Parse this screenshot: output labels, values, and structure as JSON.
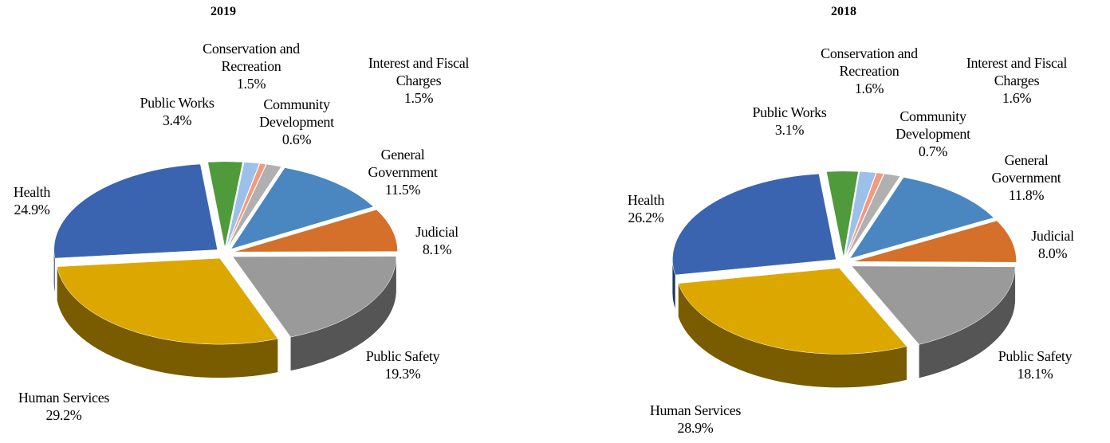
{
  "chart_data": [
    {
      "type": "pie",
      "title": "2019",
      "categories": [
        "Public Works",
        "Conservation and Recreation",
        "Community Development",
        "Interest and Fiscal Charges",
        "General Government",
        "Judicial",
        "Public Safety",
        "Human Services",
        "Health"
      ],
      "values": [
        3.4,
        1.5,
        0.6,
        1.5,
        11.5,
        8.1,
        19.3,
        29.2,
        24.9
      ],
      "value_labels": [
        "3.4%",
        "1.5%",
        "0.6%",
        "1.5%",
        "11.5%",
        "8.1%",
        "19.3%",
        "29.2%",
        "24.9%"
      ],
      "colors": [
        "#4f9a3a",
        "#9dc0e8",
        "#f09a80",
        "#b0b0b0",
        "#4a86c0",
        "#d4702a",
        "#9a9a9a",
        "#dca800",
        "#3a64b0"
      ]
    },
    {
      "type": "pie",
      "title": "2018",
      "categories": [
        "Public Works",
        "Conservation and Recreation",
        "Community Development",
        "Interest and Fiscal Charges",
        "General Government",
        "Judicial",
        "Public Safety",
        "Human Services",
        "Health"
      ],
      "values": [
        3.1,
        1.6,
        0.7,
        1.6,
        11.8,
        8.0,
        18.1,
        28.9,
        26.2
      ],
      "value_labels": [
        "3.1%",
        "1.6%",
        "0.7%",
        "1.6%",
        "11.8%",
        "8.0%",
        "18.1%",
        "28.9%",
        "26.2%"
      ],
      "colors": [
        "#4f9a3a",
        "#9dc0e8",
        "#f09a80",
        "#b0b0b0",
        "#4a86c0",
        "#d4702a",
        "#9a9a9a",
        "#dca800",
        "#3a64b0"
      ]
    }
  ]
}
